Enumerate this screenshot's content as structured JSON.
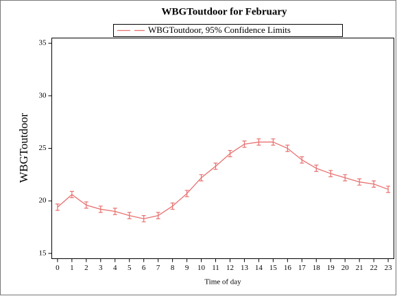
{
  "chart_data": {
    "type": "line",
    "title": "WBGToutdoor for February",
    "xlabel": "Time of day",
    "ylabel": "WBGToutdoor",
    "x": [
      0,
      1,
      2,
      3,
      4,
      5,
      6,
      7,
      8,
      9,
      10,
      11,
      12,
      13,
      14,
      15,
      16,
      17,
      18,
      19,
      20,
      21,
      22,
      23
    ],
    "series": [
      {
        "name": "WBGToutdoor, 95% Confidence Limits",
        "color": "#e8706f",
        "values": [
          19.4,
          20.6,
          19.6,
          19.2,
          19.0,
          18.6,
          18.3,
          18.6,
          19.5,
          20.7,
          22.2,
          23.3,
          24.5,
          25.4,
          25.6,
          25.6,
          25.0,
          23.9,
          23.1,
          22.6,
          22.2,
          21.8,
          21.6,
          21.1
        ],
        "errors": [
          0.3,
          0.3,
          0.3,
          0.3,
          0.3,
          0.3,
          0.3,
          0.3,
          0.3,
          0.3,
          0.3,
          0.3,
          0.3,
          0.3,
          0.3,
          0.3,
          0.3,
          0.3,
          0.3,
          0.3,
          0.3,
          0.3,
          0.3,
          0.3
        ]
      }
    ],
    "xlim": [
      -0.4,
      23.4
    ],
    "ylim": [
      14.5,
      35.5
    ],
    "xticks": [
      0,
      1,
      2,
      3,
      4,
      5,
      6,
      7,
      8,
      9,
      10,
      11,
      12,
      13,
      14,
      15,
      16,
      17,
      18,
      19,
      20,
      21,
      22,
      23
    ],
    "yticks": [
      15,
      20,
      25,
      30,
      35
    ],
    "grid": false
  }
}
